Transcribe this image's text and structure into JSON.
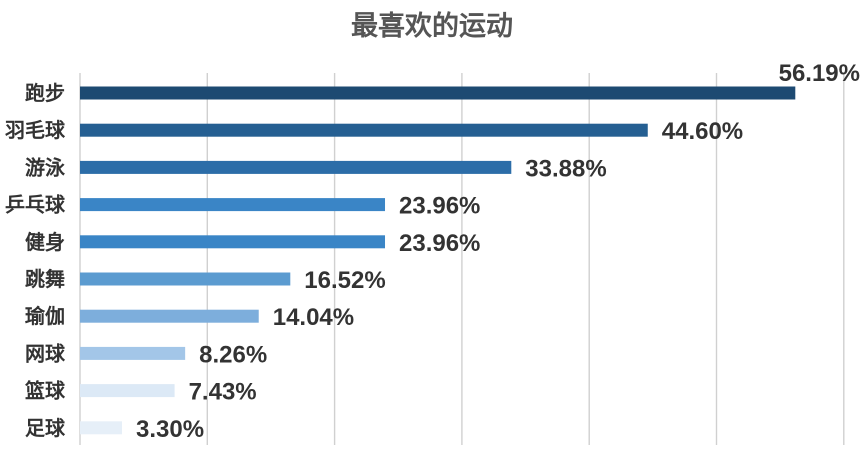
{
  "chart_data": {
    "type": "bar",
    "orientation": "horizontal",
    "title": "最喜欢的运动",
    "categories": [
      "跑步",
      "羽毛球",
      "游泳",
      "乒乓球",
      "健身",
      "跳舞",
      "瑜伽",
      "网球",
      "篮球",
      "足球"
    ],
    "values": [
      56.19,
      44.6,
      33.88,
      23.96,
      23.96,
      16.52,
      14.04,
      8.26,
      7.43,
      3.3
    ],
    "value_labels": [
      "56.19%",
      "44.60%",
      "33.88%",
      "23.96%",
      "23.96%",
      "16.52%",
      "14.04%",
      "8.26%",
      "7.43%",
      "3.30%"
    ],
    "xlim": [
      0,
      60
    ],
    "grid": true,
    "legend": "none",
    "colors": [
      "#1d4a72",
      "#255f92",
      "#2c6da8",
      "#3a85c6",
      "#3a85c6",
      "#5b9bd0",
      "#7daedc",
      "#a3c6e8",
      "#dce9f6",
      "#e6eff8"
    ]
  }
}
